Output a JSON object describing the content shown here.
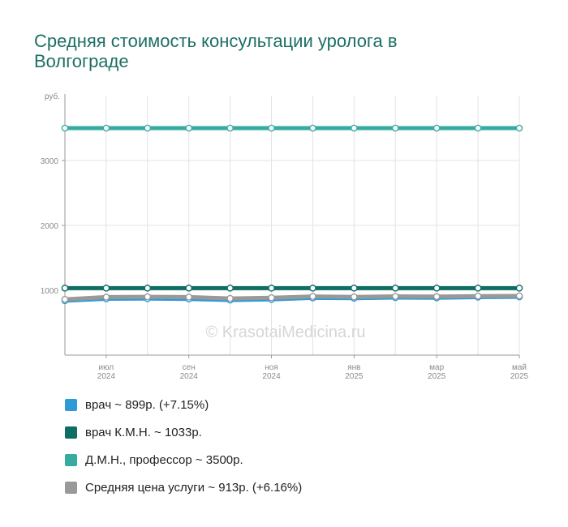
{
  "title": "Средняя стоимость консультации уролога в Волгограде",
  "watermark": "© KrasotaiMedicina.ru",
  "chart_data": {
    "type": "line",
    "y_unit": "руб.",
    "ylim": [
      0,
      4000
    ],
    "yticks": [
      1000,
      2000,
      3000
    ],
    "grid": true,
    "x_labels": [
      {
        "index": 1,
        "month": "июл",
        "year": "2024"
      },
      {
        "index": 3,
        "month": "сен",
        "year": "2024"
      },
      {
        "index": 5,
        "month": "ноя",
        "year": "2024"
      },
      {
        "index": 7,
        "month": "янв",
        "year": "2025"
      },
      {
        "index": 9,
        "month": "мар",
        "year": "2025"
      },
      {
        "index": 11,
        "month": "май",
        "year": "2025"
      }
    ],
    "series": [
      {
        "name": "врач",
        "color": "#2e9bd6",
        "values": [
          839,
          869,
          871,
          866,
          849,
          859,
          882,
          877,
          887,
          884,
          894,
          899
        ]
      },
      {
        "name": "Средняя цена услуги",
        "color": "#999999",
        "values": [
          860,
          895,
          899,
          895,
          874,
          885,
          905,
          898,
          906,
          902,
          910,
          913
        ]
      },
      {
        "name": "врач К.М.Н.",
        "color": "#0d6e64",
        "values": [
          1033,
          1033,
          1033,
          1033,
          1033,
          1033,
          1033,
          1033,
          1033,
          1033,
          1033,
          1033
        ]
      },
      {
        "name": "Д.М.Н., профессор",
        "color": "#36aca0",
        "values": [
          3500,
          3500,
          3500,
          3500,
          3500,
          3500,
          3500,
          3500,
          3500,
          3500,
          3500,
          3500
        ]
      }
    ]
  },
  "legend": [
    {
      "label": "врач ~ 899р. (+7.15%)",
      "color": "#2e9bd6"
    },
    {
      "label": "врач К.М.Н. ~ 1033р.",
      "color": "#0d6e64"
    },
    {
      "label": "Д.М.Н., профессор ~ 3500р.",
      "color": "#36aca0"
    },
    {
      "label": "Средняя цена услуги ~ 913р. (+6.16%)",
      "color": "#999999"
    }
  ]
}
